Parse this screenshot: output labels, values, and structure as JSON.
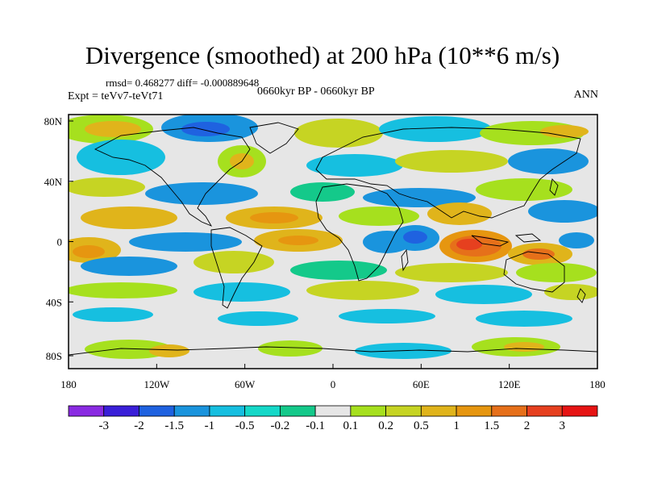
{
  "title": "Divergence (smoothed) at 200 hPa (10**6 m/s)",
  "stats": "rmsd= 0.468277 diff= -0.000889648",
  "experiment": "Expt = teVv7-teVt71",
  "period": "0660kyr BP - 0660kyr BP",
  "season": "ANN",
  "map": {
    "lon_ticks": [
      "180",
      "120W",
      "60W",
      "0",
      "60E",
      "120E",
      "180"
    ],
    "lat_ticks": [
      "80N",
      "40N",
      "0",
      "40S",
      "80S"
    ],
    "background_color": "#e6e6e6"
  },
  "colorbar": {
    "colors": [
      "#8a2be2",
      "#3a1fd8",
      "#1f62e0",
      "#1a94dd",
      "#16bfe0",
      "#15d8c8",
      "#14c98a",
      "#e6e6e6",
      "#a6e01e",
      "#c6d423",
      "#e0b41b",
      "#e69610",
      "#e6701a",
      "#e6401f",
      "#e61414"
    ],
    "labels": [
      "-3",
      "-2",
      "-1.5",
      "-1",
      "-0.5",
      "-0.2",
      "-0.1",
      "0.1",
      "0.2",
      "0.5",
      "1",
      "1.5",
      "2",
      "3"
    ]
  }
}
